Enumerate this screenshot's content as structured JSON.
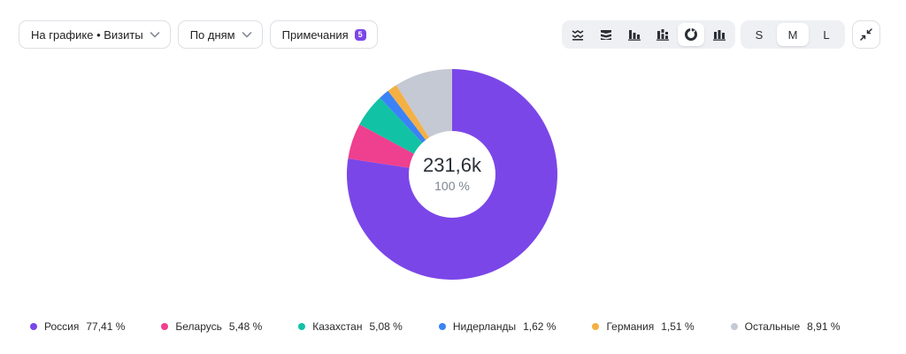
{
  "toolbar": {
    "metric_dropdown": "На графике • Визиты",
    "period_dropdown": "По дням",
    "notes_label": "Примечания",
    "notes_count": "5",
    "sizes": [
      "S",
      "M",
      "L"
    ],
    "active_size": "M",
    "chart_types": [
      "area-stacked-icon",
      "area-stacked-alt-icon",
      "bar-icon",
      "bar-stacked-icon",
      "pie-icon",
      "column-icon"
    ],
    "active_chart_type": "pie-icon"
  },
  "colors": {
    "accent": "#7b46e8",
    "russia": "#7b46e8",
    "belarus": "#ef3f8f",
    "kazakhstan": "#12c2a4",
    "netherlands": "#3b82f6",
    "germany": "#f5b044",
    "other": "#c4c9d4"
  },
  "chart_data": {
    "type": "pie",
    "center_total": "231,6k",
    "center_percent": "100 %",
    "series": [
      {
        "name": "Россия",
        "value": 77.41,
        "label": "77,41 %",
        "color": "#7b46e8"
      },
      {
        "name": "Беларусь",
        "value": 5.48,
        "label": "5,48 %",
        "color": "#ef3f8f"
      },
      {
        "name": "Казахстан",
        "value": 5.08,
        "label": "5,08 %",
        "color": "#12c2a4"
      },
      {
        "name": "Нидерланды",
        "value": 1.62,
        "label": "1,62 %",
        "color": "#3b82f6"
      },
      {
        "name": "Германия",
        "value": 1.51,
        "label": "1,51 %",
        "color": "#f5b044"
      },
      {
        "name": "Остальные",
        "value": 8.91,
        "label": "8,91 %",
        "color": "#c4c9d4"
      }
    ]
  }
}
